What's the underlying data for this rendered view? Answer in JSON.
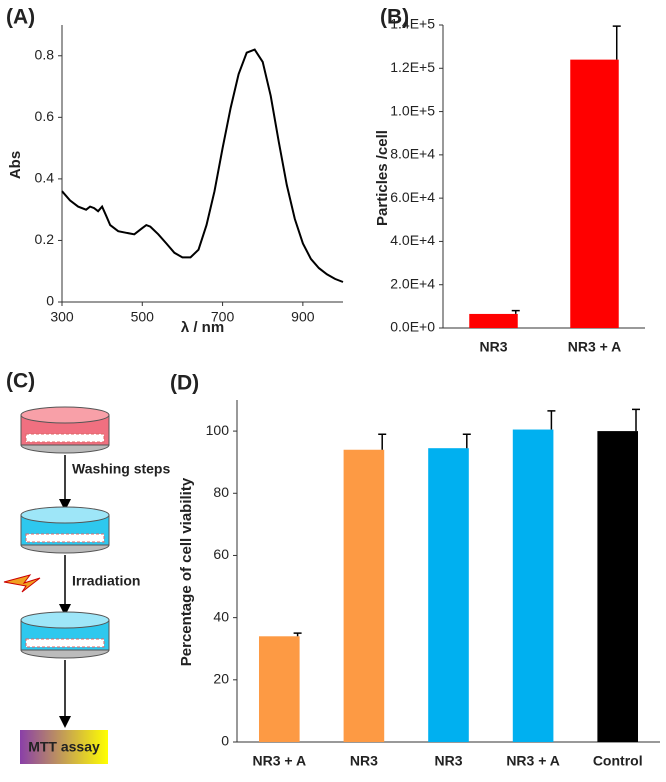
{
  "chart_data": [
    {
      "type": "line",
      "panel_label": "(A)",
      "y_label": "Abs",
      "x_label": "λ / nm",
      "color": "#000000",
      "x": [
        300,
        320,
        340,
        360,
        370,
        380,
        390,
        400,
        410,
        420,
        440,
        460,
        480,
        500,
        510,
        520,
        540,
        560,
        580,
        600,
        620,
        640,
        660,
        680,
        700,
        720,
        740,
        760,
        780,
        800,
        820,
        840,
        860,
        880,
        900,
        920,
        940,
        960,
        980,
        1000
      ],
      "values": [
        0.36,
        0.33,
        0.31,
        0.3,
        0.31,
        0.305,
        0.295,
        0.31,
        0.28,
        0.25,
        0.23,
        0.225,
        0.22,
        0.24,
        0.25,
        0.245,
        0.22,
        0.19,
        0.16,
        0.145,
        0.145,
        0.17,
        0.25,
        0.36,
        0.5,
        0.63,
        0.74,
        0.81,
        0.82,
        0.78,
        0.67,
        0.52,
        0.38,
        0.27,
        0.19,
        0.14,
        0.11,
        0.09,
        0.075,
        0.065
      ],
      "xlim": [
        300,
        1000
      ],
      "xticks": [
        300,
        500,
        700,
        900
      ],
      "ylim": [
        0,
        0.9
      ],
      "yticks": [
        0,
        0.2,
        0.4,
        0.6,
        0.8
      ]
    },
    {
      "type": "bar",
      "panel_label": "(B)",
      "y_label": "Particles /cell",
      "categories": [
        "NR3",
        "NR3 + A"
      ],
      "values": [
        6500,
        124000
      ],
      "errors": [
        1500,
        15500
      ],
      "colors": [
        "#ff0000",
        "#ff0000"
      ],
      "ylim": [
        0,
        140000
      ],
      "yticks": [
        {
          "value": 0,
          "label": "0.0E+0"
        },
        {
          "value": 20000,
          "label": "2.0E+4"
        },
        {
          "value": 40000,
          "label": "4.0E+4"
        },
        {
          "value": 60000,
          "label": "6.0E+4"
        },
        {
          "value": 80000,
          "label": "8.0E+4"
        },
        {
          "value": 100000,
          "label": "1.0E+5"
        },
        {
          "value": 120000,
          "label": "1.2E+5"
        },
        {
          "value": 140000,
          "label": "1.4E+5"
        }
      ]
    },
    {
      "type": "bar",
      "panel_label": "(D)",
      "y_label": "Percentage of cell viability",
      "categories": [
        "NR3 + A",
        "NR3",
        "NR3",
        "NR3 + A",
        "Control"
      ],
      "values": [
        34,
        94,
        94.5,
        100.5,
        100
      ],
      "errors": [
        1,
        5,
        4.5,
        6,
        7
      ],
      "colors": [
        "#fd9a44",
        "#fd9a44",
        "#00b0f0",
        "#00b0f0",
        "#000000"
      ],
      "ylim": [
        0,
        110
      ],
      "yticks": [
        0,
        20,
        40,
        60,
        80,
        100
      ]
    }
  ],
  "diagram": {
    "panel_label": "(C)",
    "steps": [
      "Washing steps",
      "Irradiation"
    ],
    "result": "MTT assay"
  }
}
